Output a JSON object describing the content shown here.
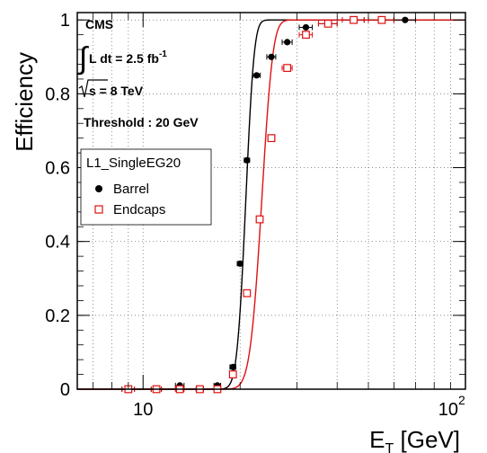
{
  "chart_data": {
    "type": "scatter",
    "title": "",
    "xlabel_main": "E",
    "xlabel_sub": "T",
    "xlabel_unit": " [GeV]",
    "ylabel": "Efficiency",
    "xscale": "log",
    "xlim": [
      6.25,
      100
    ],
    "ylim": [
      0,
      1.02
    ],
    "xticks": [
      {
        "value": 10,
        "label": "10",
        "exp": ""
      },
      {
        "value": 100,
        "label": "10",
        "exp": "2"
      }
    ],
    "yticks": [
      {
        "value": 0,
        "label": "0"
      },
      {
        "value": 0.2,
        "label": "0.2"
      },
      {
        "value": 0.4,
        "label": "0.4"
      },
      {
        "value": 0.6,
        "label": "0.6"
      },
      {
        "value": 0.8,
        "label": "0.8"
      },
      {
        "value": 1,
        "label": "1"
      }
    ],
    "grid": true,
    "legend_position": "middle-left",
    "annotations": {
      "experiment": "CMS",
      "lumi_text": "L dt = 2.5 fb",
      "lumi_exp": "-1",
      "energy_text": "s = 8 TeV",
      "threshold": "Threshold : 20 GeV"
    },
    "legend": {
      "header": "L1_SingleEG20",
      "entries": [
        "Barrel",
        "Endcaps"
      ]
    },
    "series": [
      {
        "name": "Barrel",
        "color": "#000000",
        "marker": "filled-circle",
        "fit": {
          "threshold": 20.8,
          "width": 1.0
        },
        "points": [
          {
            "x": 9.0,
            "y": 0.0,
            "xerr": 0.4
          },
          {
            "x": 11.0,
            "y": 0.0,
            "xerr": 0.4
          },
          {
            "x": 13.0,
            "y": 0.01,
            "xerr": 0.4
          },
          {
            "x": 17.0,
            "y": 0.01,
            "xerr": 0.4
          },
          {
            "x": 19.0,
            "y": 0.06,
            "xerr": 0.4
          },
          {
            "x": 20.0,
            "y": 0.34,
            "xerr": 0.4
          },
          {
            "x": 21.0,
            "y": 0.62,
            "xerr": 0.4
          },
          {
            "x": 22.5,
            "y": 0.85,
            "xerr": 0.6
          },
          {
            "x": 25.0,
            "y": 0.9,
            "xerr": 0.8
          },
          {
            "x": 28.0,
            "y": 0.94,
            "xerr": 1.0
          },
          {
            "x": 32.0,
            "y": 0.98,
            "xerr": 1.5
          },
          {
            "x": 37.5,
            "y": 0.99,
            "xerr": 2.5
          },
          {
            "x": 45.0,
            "y": 1.0,
            "xerr": 3.5
          },
          {
            "x": 55.0,
            "y": 1.0,
            "xerr": 5.0
          },
          {
            "x": 65.0,
            "y": 1.0,
            "xerr": 5.0
          }
        ]
      },
      {
        "name": "Endcaps",
        "color": "#e01010",
        "marker": "open-square",
        "fit": {
          "threshold": 23.3,
          "width": 1.5
        },
        "points": [
          {
            "x": 9.0,
            "y": 0.0,
            "xerr": 0.4
          },
          {
            "x": 11.0,
            "y": 0.0,
            "xerr": 0.4
          },
          {
            "x": 13.0,
            "y": 0.0,
            "xerr": 0.4
          },
          {
            "x": 15.0,
            "y": 0.0,
            "xerr": 0.4
          },
          {
            "x": 17.0,
            "y": 0.0,
            "xerr": 0.4
          },
          {
            "x": 19.0,
            "y": 0.04,
            "xerr": 0.4
          },
          {
            "x": 21.0,
            "y": 0.26,
            "xerr": 0.4
          },
          {
            "x": 23.0,
            "y": 0.46,
            "xerr": 0.5
          },
          {
            "x": 25.0,
            "y": 0.68,
            "xerr": 0.6
          },
          {
            "x": 28.0,
            "y": 0.87,
            "xerr": 1.0
          },
          {
            "x": 32.0,
            "y": 0.96,
            "xerr": 1.5
          },
          {
            "x": 37.5,
            "y": 0.99,
            "xerr": 2.5
          },
          {
            "x": 45.0,
            "y": 1.0,
            "xerr": 3.5
          },
          {
            "x": 55.0,
            "y": 1.0,
            "xerr": 5.0
          }
        ]
      }
    ]
  }
}
